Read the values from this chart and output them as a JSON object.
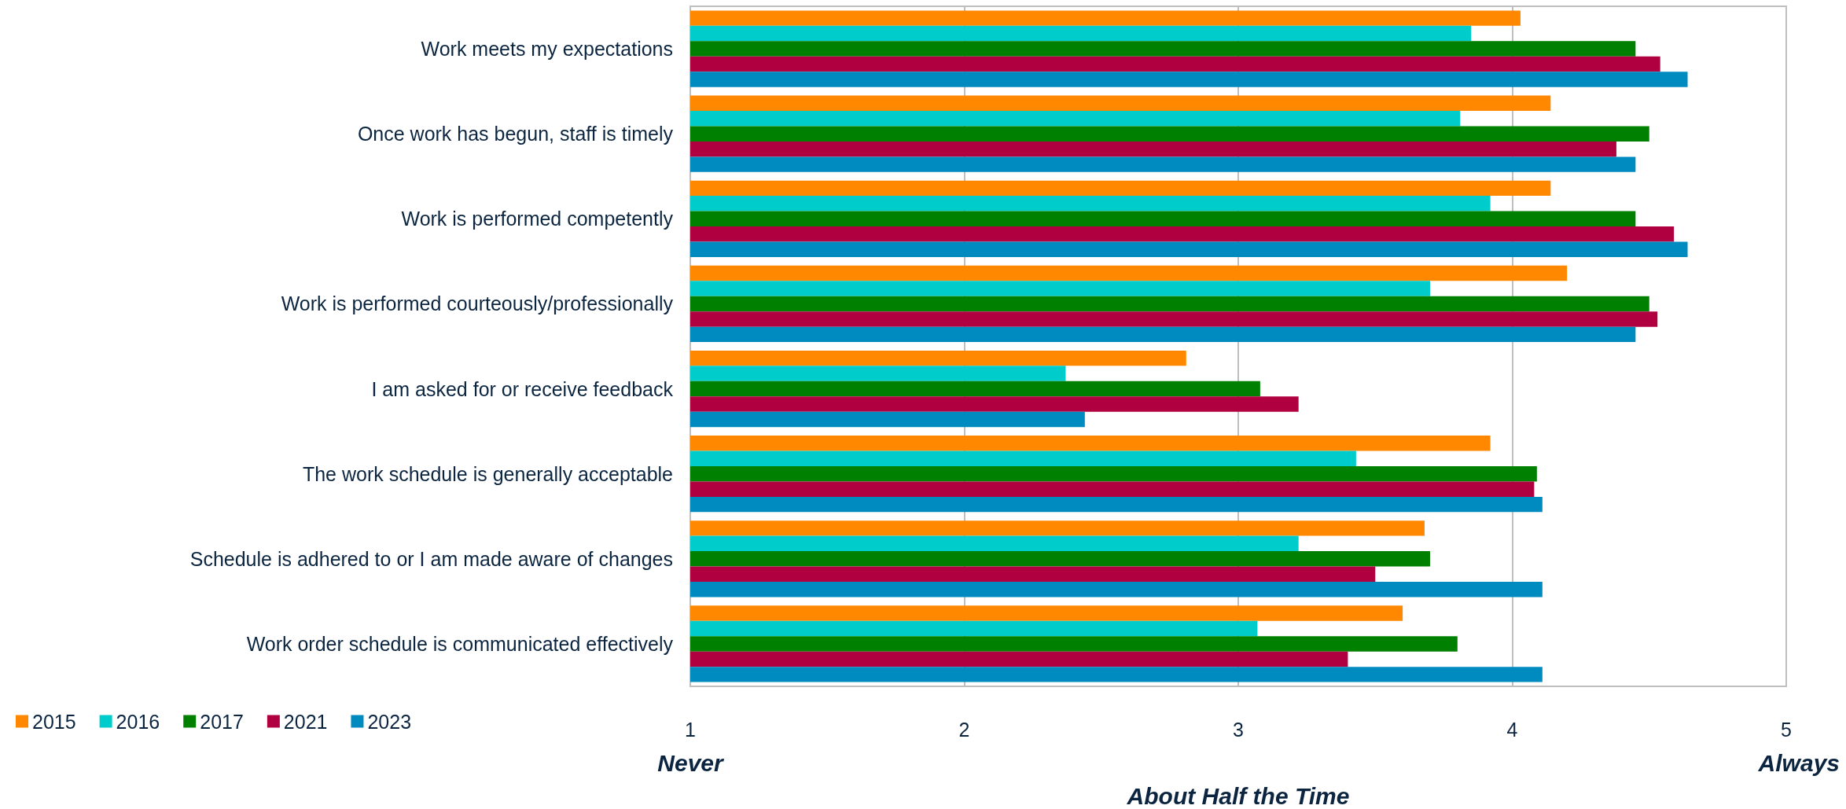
{
  "chart_data": {
    "type": "bar",
    "orientation": "horizontal",
    "categories": [
      "Work meets my expectations",
      "Once work has begun, staff is timely",
      "Work is performed competently",
      "Work is performed courteously/professionally",
      "I am asked for or receive feedback",
      "The work schedule is generally acceptable",
      "Schedule is adhered to or I am made aware of changes",
      "Work order schedule is communicated effectively"
    ],
    "series": [
      {
        "name": "2015",
        "color": "#ff8800",
        "values": [
          4.03,
          4.14,
          4.14,
          4.2,
          2.81,
          3.92,
          3.68,
          3.6
        ]
      },
      {
        "name": "2016",
        "color": "#00cccc",
        "values": [
          3.85,
          3.81,
          3.92,
          3.7,
          2.37,
          3.43,
          3.22,
          3.07
        ]
      },
      {
        "name": "2017",
        "color": "#008000",
        "values": [
          4.45,
          4.5,
          4.45,
          4.5,
          3.08,
          4.09,
          3.7,
          3.8
        ]
      },
      {
        "name": "2021",
        "color": "#b00040",
        "values": [
          4.54,
          4.38,
          4.59,
          4.53,
          3.22,
          4.08,
          3.5,
          3.4
        ]
      },
      {
        "name": "2023",
        "color": "#008bc0",
        "values": [
          4.64,
          4.45,
          4.64,
          4.45,
          2.44,
          4.11,
          4.11,
          4.11
        ]
      }
    ],
    "xlim": [
      1,
      5
    ],
    "xticks": [
      1,
      2,
      3,
      4,
      5
    ],
    "grid": "x",
    "legend": "bottom left",
    "annotations": [
      "Never",
      "About Half the Time",
      "Always"
    ]
  }
}
